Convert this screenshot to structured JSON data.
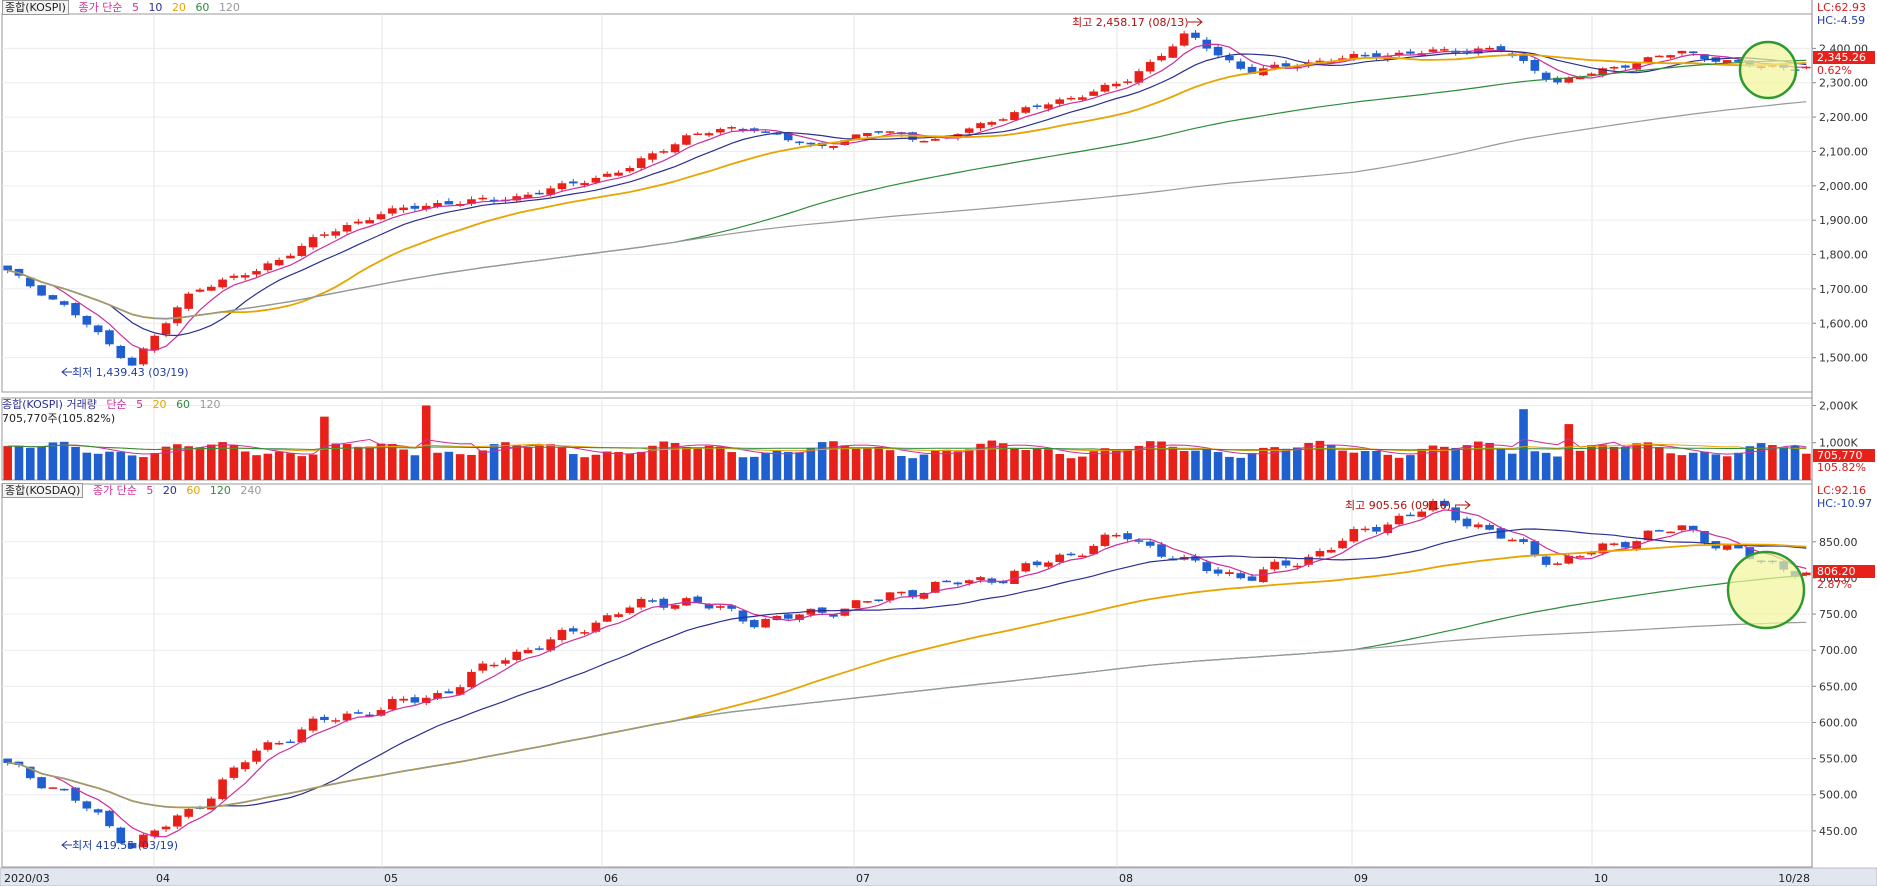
{
  "panels": {
    "kospi": {
      "name": "종합(KOSPI)",
      "ma_label": "종가 단순",
      "ma_periods": [
        "5",
        "10",
        "20",
        "60",
        "120"
      ],
      "lc": "LC:62.93",
      "hc": "HC:-4.59",
      "current": "2,345.26",
      "change": "0.62%",
      "high_note": "최고 2,458.17 (08/13)",
      "low_note": "최저 1,439.43 (03/19)",
      "y_ticks": [
        "2,400.00",
        "2,300.00",
        "2,200.00",
        "2,100.00",
        "2,000.00",
        "1,900.00",
        "1,800.00",
        "1,700.00",
        "1,600.00",
        "1,500.00"
      ]
    },
    "volume": {
      "name": "종합(KOSPI) 거래량",
      "ma_label": "단순",
      "ma_periods": [
        "5",
        "20",
        "60",
        "120"
      ],
      "value_line": "705,770주(105.82%)",
      "current": "705,770",
      "change": "105.82%",
      "y_ticks": [
        "2,000K",
        "1,000K"
      ]
    },
    "kosdaq": {
      "name": "종합(KOSDAQ)",
      "ma_label": "종가 단순",
      "ma_periods": [
        "5",
        "20",
        "60",
        "120",
        "240"
      ],
      "lc": "LC:92.16",
      "hc": "HC:-10.97",
      "current": "806.20",
      "change": "2.87%",
      "high_note": "최고 905.56 (09/16)",
      "low_note": "최저 419.55 (03/19)",
      "y_ticks": [
        "850.00",
        "800.00",
        "750.00",
        "700.00",
        "650.00",
        "600.00",
        "550.00",
        "500.00",
        "450.00"
      ]
    }
  },
  "x_axis": {
    "labels": [
      "2020/03",
      "04",
      "05",
      "06",
      "07",
      "08",
      "09",
      "10",
      "10/28"
    ]
  },
  "colors": {
    "up": "#e8201a",
    "down": "#1f5fd0",
    "ma5": "#cc2f9a",
    "ma10": "#2c2f8f",
    "ma20": "#e8a400",
    "ma60": "#2e8b3c",
    "ma120": "#999999",
    "highlight": "#f2f59a",
    "highlight_border": "#2e9a2e"
  },
  "chart_data": [
    {
      "type": "candlestick",
      "title": "종합(KOSPI)",
      "x_range": [
        "2020-03",
        "2020-10-28"
      ],
      "ylim": [
        1439.43,
        2458.17
      ],
      "key_points": [
        {
          "date": "03/19",
          "label": "최저",
          "value": 1439.43
        },
        {
          "date": "08/13",
          "label": "최고",
          "value": 2458.17
        },
        {
          "date": "10/28",
          "label": "current",
          "value": 2345.26
        }
      ],
      "approx_close_path": [
        1750,
        1640,
        1480,
        1700,
        1750,
        1850,
        1920,
        1950,
        1960,
        2000,
        2050,
        2150,
        2170,
        2110,
        2160,
        2130,
        2200,
        2250,
        2300,
        2440,
        2330,
        2360,
        2380,
        2390,
        2400,
        2300,
        2350,
        2390,
        2350,
        2345
      ]
    },
    {
      "type": "bar",
      "title": "종합(KOSPI) 거래량",
      "ylim": [
        0,
        2200
      ],
      "unit": "K",
      "last_value": 705.77
    },
    {
      "type": "candlestick",
      "title": "종합(KOSDAQ)",
      "x_range": [
        "2020-03",
        "2020-10-28"
      ],
      "ylim": [
        419.55,
        905.56
      ],
      "key_points": [
        {
          "date": "03/19",
          "label": "최저",
          "value": 419.55
        },
        {
          "date": "09/16",
          "label": "최고",
          "value": 905.56
        },
        {
          "date": "10/28",
          "label": "current",
          "value": 806.2
        }
      ],
      "approx_close_path": [
        540,
        500,
        430,
        480,
        560,
        600,
        620,
        640,
        690,
        720,
        760,
        770,
        740,
        750,
        770,
        790,
        800,
        830,
        860,
        820,
        800,
        830,
        870,
        900,
        860,
        820,
        850,
        870,
        830,
        806
      ]
    }
  ]
}
